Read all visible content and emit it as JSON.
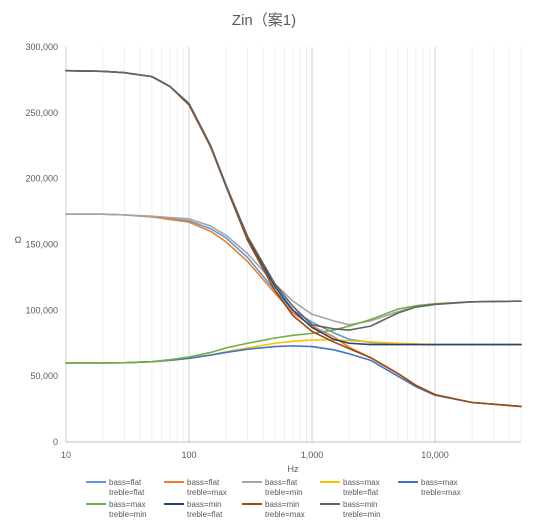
{
  "chart_data": {
    "type": "line",
    "title": "Zin（案1)",
    "xlabel": "Hz",
    "ylabel": "Ω",
    "x_scale": "log",
    "xlim": [
      10,
      50000
    ],
    "ylim": [
      0,
      300000
    ],
    "x_ticks": [
      10,
      100,
      1000,
      10000
    ],
    "x_tick_labels": [
      "10",
      "100",
      "1,000",
      "10,000"
    ],
    "y_ticks": [
      0,
      50000,
      100000,
      150000,
      200000,
      250000,
      300000
    ],
    "y_tick_labels": [
      "0",
      "50,000",
      "100,000",
      "150,000",
      "200,000",
      "250,000",
      "300,000"
    ],
    "grid": "vertical",
    "legend_position": "bottom",
    "x": [
      10,
      20,
      30,
      50,
      70,
      100,
      150,
      200,
      300,
      500,
      700,
      1000,
      1500,
      2000,
      3000,
      5000,
      7000,
      10000,
      20000,
      50000
    ],
    "series": [
      {
        "name": "bass=flat treble=flat",
        "color": "#5b9bd5",
        "values": [
          173000,
          173000,
          172500,
          171000,
          169500,
          168000,
          162000,
          155000,
          140000,
          115000,
          100000,
          91000,
          83000,
          78000,
          75500,
          74500,
          74200,
          74000,
          74000,
          74000
        ]
      },
      {
        "name": "bass=flat treble=max",
        "color": "#ed7d31",
        "values": [
          173000,
          173000,
          172500,
          171000,
          169000,
          167000,
          160000,
          152000,
          137000,
          113000,
          98000,
          88000,
          80000,
          72000,
          64000,
          52000,
          43000,
          36000,
          30000,
          27000
        ]
      },
      {
        "name": "bass=flat treble=min",
        "color": "#a5a5a5",
        "values": [
          173000,
          173000,
          172500,
          171500,
          170500,
          169500,
          164000,
          157000,
          143000,
          120000,
          107000,
          97000,
          92000,
          89000,
          92000,
          99000,
          103000,
          105000,
          106500,
          107000
        ]
      },
      {
        "name": "bass=max treble=flat",
        "color": "#ffc000",
        "values": [
          60000,
          60000,
          60200,
          61000,
          62000,
          63500,
          66000,
          68500,
          71500,
          75000,
          76500,
          77500,
          77500,
          77000,
          76000,
          75000,
          74500,
          74000,
          74000,
          74000
        ]
      },
      {
        "name": "bass=max treble=max",
        "color": "#4472c4",
        "values": [
          60000,
          60000,
          60200,
          61000,
          62000,
          63500,
          66000,
          68000,
          70500,
          72500,
          73000,
          72500,
          70000,
          67000,
          62000,
          50000,
          42000,
          35500,
          30000,
          27000
        ]
      },
      {
        "name": "bass=max treble=min",
        "color": "#70ad47",
        "values": [
          60000,
          60000,
          60200,
          61000,
          62500,
          64500,
          68000,
          71500,
          75000,
          79000,
          81000,
          82500,
          85000,
          88000,
          93000,
          101000,
          103500,
          105000,
          106500,
          107000
        ]
      },
      {
        "name": "bass=min treble=flat",
        "color": "#264478",
        "values": [
          282000,
          281500,
          280500,
          277500,
          270000,
          257000,
          225000,
          195000,
          155000,
          118000,
          100000,
          87000,
          78000,
          75000,
          74000,
          74000,
          74000,
          74000,
          74000,
          74000
        ]
      },
      {
        "name": "bass=min treble=max",
        "color": "#9e480e",
        "values": [
          282000,
          281500,
          280500,
          277500,
          270000,
          256000,
          224000,
          194000,
          153000,
          115000,
          96000,
          84000,
          76000,
          71000,
          64000,
          52000,
          43000,
          36000,
          30000,
          27000
        ]
      },
      {
        "name": "bass=min treble=min",
        "color": "#636363",
        "values": [
          282000,
          281500,
          280500,
          277500,
          270000,
          257000,
          225000,
          195000,
          156000,
          120000,
          103000,
          89000,
          86000,
          85000,
          88000,
          98000,
          102500,
          104500,
          106500,
          107000
        ]
      }
    ]
  }
}
